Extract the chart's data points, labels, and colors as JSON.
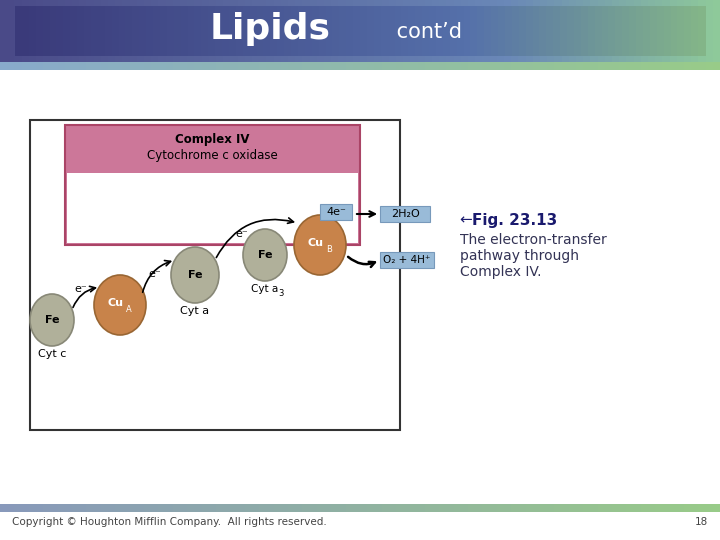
{
  "title_large": "Lipids",
  "title_small": " cont’d",
  "footer_text": "Copyright © Houghton Mifflin Company.  All rights reserved.",
  "footer_page": "18",
  "fig_label_arrow": "← ",
  "fig_label_bold": "Fig. 23.13",
  "fig_desc_line1": "The electron-transfer",
  "fig_desc_line2": "pathway through",
  "fig_desc_line3": "Complex IV.",
  "complex_title1": "Complex IV",
  "complex_title2": "Cytochrome c oxidase",
  "complex_pink": "#cc7799",
  "label_4e": "4e⁻",
  "label_2h2o": "2H₂O",
  "label_o2": "O₂ + 4H⁺",
  "cu_color": "#c8834a",
  "fe_color": "#b0b09a",
  "blue_box": "#99bbd8",
  "fig_title_color": "#1a1a6e",
  "fig_desc_color": "#333355"
}
